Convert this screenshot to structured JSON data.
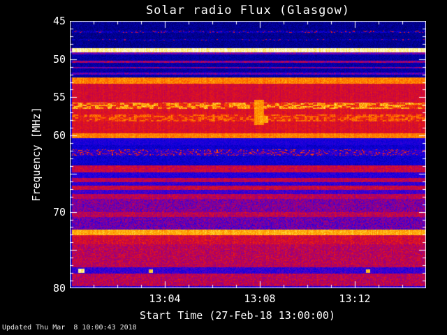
{
  "figure": {
    "title": "Solar radio Flux (Glasgow)"
  },
  "footer": {
    "updated": "Updated Thu Mar  8 10:00:43 2018"
  },
  "chart_data": {
    "type": "heatmap",
    "title": "Solar radio Flux (Glasgow)",
    "xlabel": "Start Time (27-Feb-18 13:00:00)",
    "ylabel": "Frequency [MHz]",
    "x_unit": "minutes after 13:00:00",
    "x_range": [
      0,
      15
    ],
    "x_major_ticks": [
      {
        "t": 4,
        "label": "13:04"
      },
      {
        "t": 8,
        "label": "13:08"
      },
      {
        "t": 12,
        "label": "13:12"
      }
    ],
    "x_minor_tick_step": 1,
    "y_range": [
      45,
      80
    ],
    "y_axis_inverted": true,
    "y_major_ticks": [
      {
        "f": 45,
        "label": "45"
      },
      {
        "f": 50,
        "label": "50"
      },
      {
        "f": 55,
        "label": "55"
      },
      {
        "f": 60,
        "label": "60"
      },
      {
        "f": 65,
        "label": ""
      },
      {
        "f": 70,
        "label": "70"
      },
      {
        "f": 75,
        "label": ""
      },
      {
        "f": 80,
        "label": "80"
      }
    ],
    "y_minor_tick_step": 1,
    "background_color": "#000000",
    "frame_color": "#ffffff",
    "colormap_stops": [
      [
        0.0,
        0,
        0,
        30
      ],
      [
        0.14,
        0,
        0,
        145
      ],
      [
        0.25,
        10,
        0,
        220
      ],
      [
        0.35,
        60,
        0,
        215
      ],
      [
        0.45,
        130,
        0,
        160
      ],
      [
        0.55,
        190,
        0,
        80
      ],
      [
        0.65,
        230,
        25,
        20
      ],
      [
        0.75,
        255,
        90,
        0
      ],
      [
        0.85,
        255,
        165,
        0
      ],
      [
        0.93,
        255,
        230,
        70
      ],
      [
        1.0,
        255,
        255,
        235
      ]
    ],
    "seed": 42,
    "bands": [
      {
        "f0": 45.0,
        "f1": 48.55,
        "base": 0.14,
        "noise": 0.05
      },
      {
        "f0": 46.25,
        "f1": 46.55,
        "base": 0.2,
        "noise": 0.1,
        "speckle_p": 0.12,
        "speckle_v": 0.5
      },
      {
        "f0": 47.4,
        "f1": 47.6,
        "base": 0.18,
        "noise": 0.08,
        "speckle_p": 0.06,
        "speckle_v": 0.45
      },
      {
        "f0": 48.55,
        "f1": 49.15,
        "base": 0.97,
        "noise": 0.03
      },
      {
        "f0": 49.15,
        "f1": 49.4,
        "base": 0.42,
        "noise": 0.1
      },
      {
        "f0": 49.4,
        "f1": 52.4,
        "base": 0.17,
        "noise": 0.05
      },
      {
        "f0": 50.2,
        "f1": 50.45,
        "base": 0.5,
        "noise": 0.12
      },
      {
        "f0": 51.0,
        "f1": 51.2,
        "base": 0.45,
        "noise": 0.12
      },
      {
        "f0": 51.8,
        "f1": 52.0,
        "base": 0.4,
        "noise": 0.12
      },
      {
        "f0": 52.4,
        "f1": 53.2,
        "base": 0.8,
        "noise": 0.06
      },
      {
        "f0": 53.2,
        "f1": 55.7,
        "base": 0.6,
        "noise": 0.05
      },
      {
        "f0": 55.7,
        "f1": 56.5,
        "base": 0.72,
        "noise": 0.08,
        "dash": {
          "len": 6,
          "duty": 0.55,
          "amp": 0.13
        }
      },
      {
        "f0": 56.5,
        "f1": 57.2,
        "base": 0.62,
        "noise": 0.05
      },
      {
        "f0": 57.2,
        "f1": 58.2,
        "base": 0.68,
        "noise": 0.07,
        "dash": {
          "len": 4,
          "duty": 0.5,
          "amp": 0.08
        }
      },
      {
        "f0": 58.2,
        "f1": 59.7,
        "base": 0.62,
        "noise": 0.05
      },
      {
        "f0": 59.7,
        "f1": 60.35,
        "base": 0.8,
        "noise": 0.05
      },
      {
        "f0": 60.35,
        "f1": 61.3,
        "base": 0.28,
        "noise": 0.06
      },
      {
        "f0": 61.3,
        "f1": 61.8,
        "base": 0.24,
        "noise": 0.06
      },
      {
        "f0": 61.8,
        "f1": 62.6,
        "base": 0.3,
        "noise": 0.1,
        "speckle_p": 0.2,
        "speckle_v": 0.55
      },
      {
        "f0": 62.6,
        "f1": 63.9,
        "base": 0.24,
        "noise": 0.06
      },
      {
        "f0": 63.9,
        "f1": 64.8,
        "base": 0.58,
        "noise": 0.08
      },
      {
        "f0": 64.8,
        "f1": 65.6,
        "base": 0.3,
        "noise": 0.07
      },
      {
        "f0": 65.6,
        "f1": 66.1,
        "base": 0.55,
        "noise": 0.08
      },
      {
        "f0": 66.1,
        "f1": 66.6,
        "base": 0.32,
        "noise": 0.07
      },
      {
        "f0": 66.6,
        "f1": 67.1,
        "base": 0.58,
        "noise": 0.08
      },
      {
        "f0": 67.1,
        "f1": 67.7,
        "base": 0.35,
        "noise": 0.08
      },
      {
        "f0": 67.7,
        "f1": 68.3,
        "base": 0.55,
        "noise": 0.09
      },
      {
        "f0": 68.3,
        "f1": 70.0,
        "base": 0.45,
        "noise": 0.12
      },
      {
        "f0": 70.0,
        "f1": 70.7,
        "base": 0.55,
        "noise": 0.1
      },
      {
        "f0": 70.7,
        "f1": 72.3,
        "base": 0.42,
        "noise": 0.12
      },
      {
        "f0": 72.3,
        "f1": 73.1,
        "base": 0.86,
        "noise": 0.05
      },
      {
        "f0": 73.1,
        "f1": 74.2,
        "base": 0.6,
        "noise": 0.08
      },
      {
        "f0": 74.2,
        "f1": 77.3,
        "base": 0.55,
        "noise": 0.1
      },
      {
        "f0": 77.3,
        "f1": 78.1,
        "base": 0.33,
        "noise": 0.09
      },
      {
        "f0": 78.1,
        "f1": 79.7,
        "base": 0.55,
        "noise": 0.1
      },
      {
        "f0": 79.7,
        "f1": 80.01,
        "base": 0.3,
        "noise": 0.08
      }
    ],
    "features": [
      {
        "t0": 7.75,
        "t1": 8.15,
        "f0": 55.3,
        "f1": 58.6,
        "value": 0.82,
        "label": "burst near 13:08"
      },
      {
        "t0": 8.0,
        "t1": 8.35,
        "f0": 57.4,
        "f1": 58.3,
        "value": 0.85,
        "label": "burst tail"
      },
      {
        "t0": 0.35,
        "t1": 0.6,
        "f0": 77.45,
        "f1": 78.0,
        "value": 0.95,
        "label": "interference blip"
      },
      {
        "t0": 3.3,
        "t1": 3.48,
        "f0": 77.5,
        "f1": 77.95,
        "value": 0.9,
        "label": "interference blip"
      },
      {
        "t0": 12.45,
        "t1": 12.62,
        "f0": 77.5,
        "f1": 77.95,
        "value": 0.9,
        "label": "interference blip"
      }
    ]
  }
}
